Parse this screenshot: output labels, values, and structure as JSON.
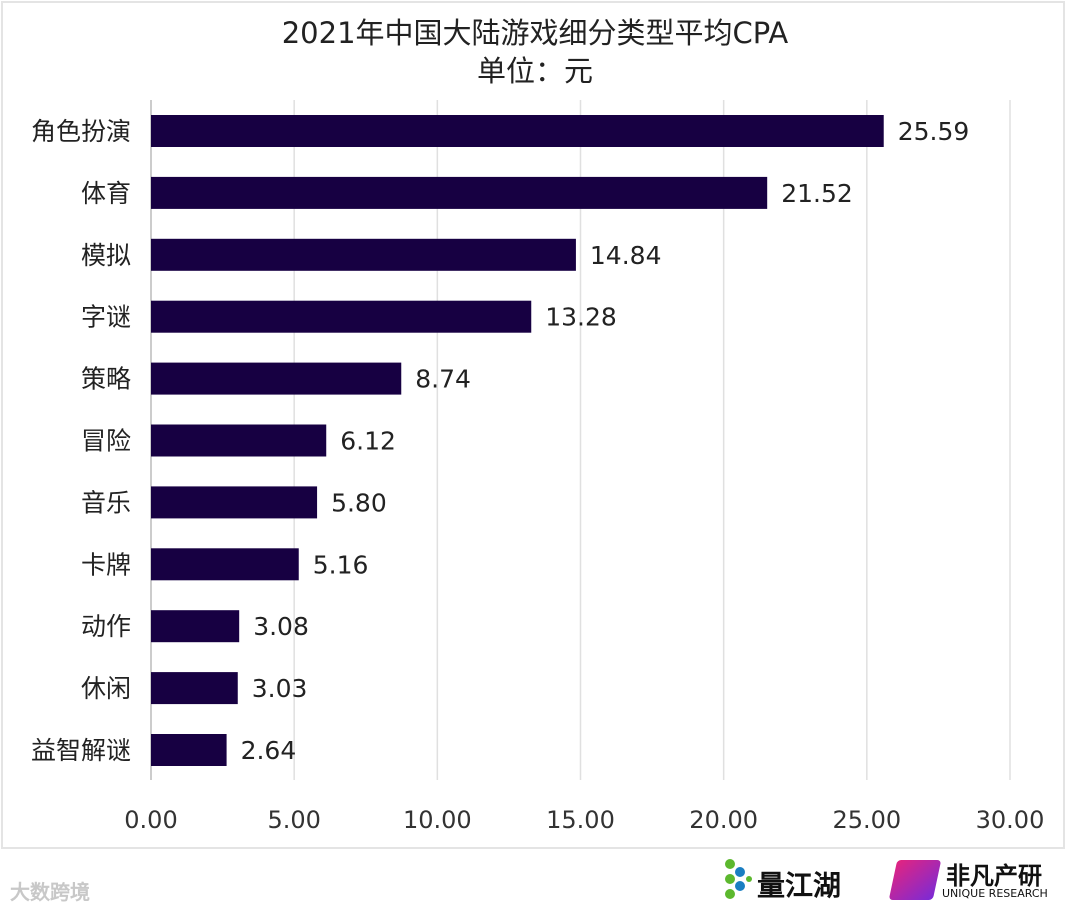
{
  "chart_data": {
    "type": "bar",
    "orientation": "horizontal",
    "title": "2021年中国大陆游戏细分类型平均CPA",
    "subtitle": "单位：元",
    "categories": [
      "角色扮演",
      "体育",
      "模拟",
      "字谜",
      "策略",
      "冒险",
      "音乐",
      "卡牌",
      "动作",
      "休闲",
      "益智解谜"
    ],
    "values": [
      25.59,
      21.52,
      14.84,
      13.28,
      8.74,
      6.12,
      5.8,
      5.16,
      3.08,
      3.03,
      2.64
    ],
    "value_labels": [
      "25.59",
      "21.52",
      "14.84",
      "13.28",
      "8.74",
      "6.12",
      "5.80",
      "5.16",
      "3.08",
      "3.03",
      "2.64"
    ],
    "xlim": [
      0,
      30
    ],
    "x_ticks": [
      "0.00",
      "5.00",
      "10.00",
      "15.00",
      "20.00",
      "25.00",
      "30.00"
    ],
    "grid": true,
    "bar_color": "#170042"
  },
  "footer": {
    "watermark": "大数跨境",
    "logo1": "量江湖",
    "logo2": "非凡产研",
    "logo2_sub": "UNIQUE RESEARCH"
  }
}
